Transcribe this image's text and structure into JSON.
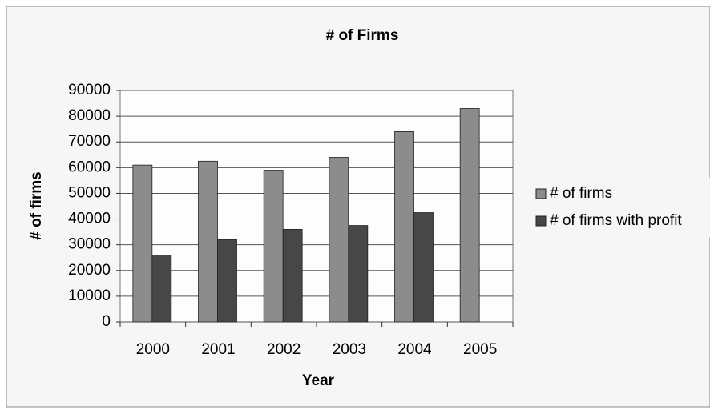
{
  "chart_data": {
    "type": "bar",
    "title": "# of Firms",
    "x_label": "Year",
    "y_label": "# of firms",
    "categories": [
      "2000",
      "2001",
      "2002",
      "2003",
      "2004",
      "2005"
    ],
    "series": [
      {
        "name": "# of firms",
        "color": "#8c8c8c",
        "values": [
          61000,
          62500,
          59000,
          64000,
          74000,
          83000
        ]
      },
      {
        "name": "# of firms with profit",
        "color": "#474747",
        "values": [
          26000,
          32000,
          36000,
          37500,
          42500,
          null
        ]
      }
    ],
    "ylim": [
      0,
      90000
    ],
    "yticks": [
      0,
      10000,
      20000,
      30000,
      40000,
      50000,
      60000,
      70000,
      80000,
      90000
    ],
    "grid": true,
    "legend": "right"
  }
}
